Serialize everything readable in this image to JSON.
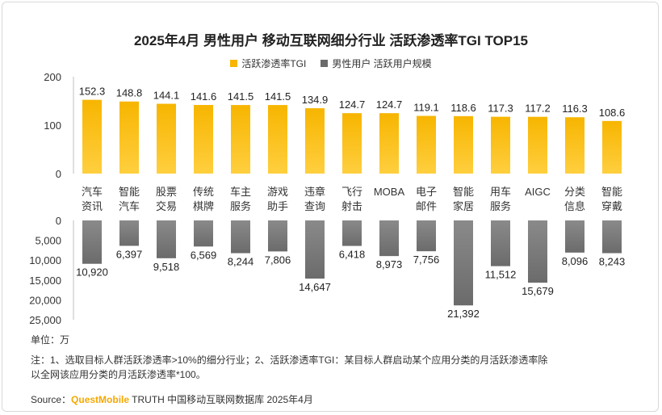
{
  "title": "2025年4月 男性用户 移动互联网细分行业 活跃渗透率TGI TOP15",
  "legend": {
    "series1": "活跃渗透率TGI",
    "series2": "男性用户 活跃用户规模",
    "color1": "#f7b500",
    "color2": "#6b6b6b"
  },
  "chart_data": {
    "type": "bar",
    "categories": [
      [
        "汽车",
        "资讯"
      ],
      [
        "智能",
        "汽车"
      ],
      [
        "股票",
        "交易"
      ],
      [
        "传统",
        "棋牌"
      ],
      [
        "车主",
        "服务"
      ],
      [
        "游戏",
        "助手"
      ],
      [
        "违章",
        "查询"
      ],
      [
        "飞行",
        "射击"
      ],
      [
        "MOBA"
      ],
      [
        "电子",
        "邮件"
      ],
      [
        "智能",
        "家居"
      ],
      [
        "用车",
        "服务"
      ],
      [
        "AIGC"
      ],
      [
        "分类",
        "信息"
      ],
      [
        "智能",
        "穿戴"
      ]
    ],
    "series": [
      {
        "name": "活跃渗透率TGI",
        "values": [
          152.3,
          148.8,
          144.1,
          141.6,
          141.5,
          141.5,
          134.9,
          124.7,
          124.7,
          119.1,
          118.6,
          117.3,
          117.2,
          116.3,
          108.6
        ],
        "labels": [
          "152.3",
          "148.8",
          "144.1",
          "141.6",
          "141.5",
          "141.5",
          "134.9",
          "124.7",
          "124.7",
          "119.1",
          "118.6",
          "117.3",
          "117.2",
          "116.3",
          "108.6"
        ],
        "yticks": [
          "0",
          "100",
          "200"
        ],
        "ylim": [
          0,
          200
        ]
      },
      {
        "name": "男性用户 活跃用户规模",
        "values": [
          10920,
          6397,
          9518,
          6569,
          8244,
          7806,
          14647,
          6418,
          8973,
          7756,
          21392,
          11512,
          15679,
          8096,
          8243
        ],
        "labels": [
          "10,920",
          "6,397",
          "9,518",
          "6,569",
          "8,244",
          "7,806",
          "14,647",
          "6,418",
          "8,973",
          "7,756",
          "21,392",
          "11,512",
          "15,679",
          "8,096",
          "8,243"
        ],
        "yticks": [
          "0",
          "5,000",
          "10,000",
          "15,000",
          "20,000",
          "25,000"
        ],
        "ylim": [
          0,
          25000
        ]
      }
    ]
  },
  "unit": "单位：万",
  "note_line1": "注：1、选取目标人群活跃渗透率>10%的细分行业；2、活跃渗透率TGI：某目标人群启动某个应用分类的月活跃渗透率除",
  "note_line2": "以全网该应用分类的月活跃渗透率*100。",
  "source": {
    "prefix": "Source：",
    "brand": "QuestMobile",
    "rest": " TRUTH 中国移动互联网数据库 2025年4月"
  }
}
